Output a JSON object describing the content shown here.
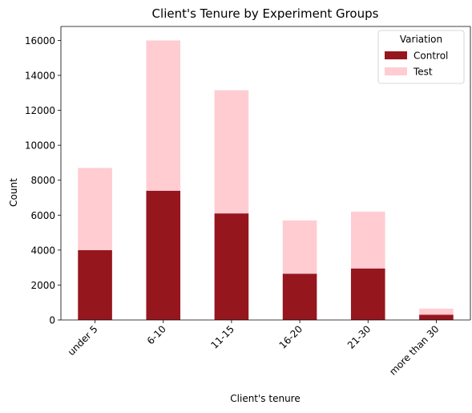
{
  "chart_data": {
    "type": "bar",
    "stacked": true,
    "title": "Client's Tenure by Experiment Groups",
    "xlabel": "Client's tenure",
    "ylabel": "Count",
    "categories": [
      "under 5",
      "6-10",
      "11-15",
      "16-20",
      "21-30",
      "more than 30"
    ],
    "series": [
      {
        "name": "Control",
        "color": "#96161e",
        "values": [
          4000,
          7400,
          6100,
          2650,
          2950,
          300
        ]
      },
      {
        "name": "Test",
        "color": "#ffccd2",
        "values": [
          4700,
          8600,
          7050,
          3050,
          3250,
          350
        ]
      }
    ],
    "ylim": [
      0,
      16800
    ],
    "yticks": [
      0,
      2000,
      4000,
      6000,
      8000,
      10000,
      12000,
      14000,
      16000
    ],
    "legend": {
      "title": "Variation",
      "position": "top-right"
    },
    "grid": false
  }
}
